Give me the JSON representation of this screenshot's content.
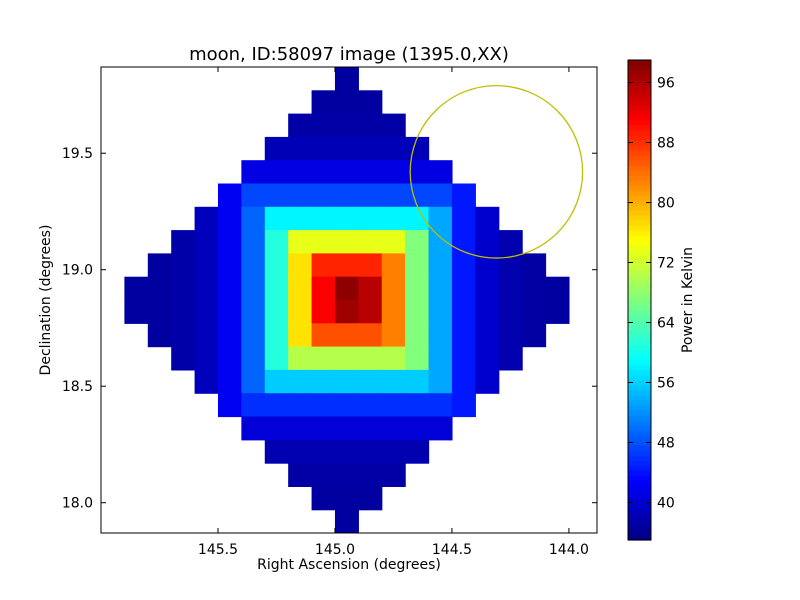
{
  "chart_data": {
    "type": "heatmap",
    "title": "moon, ID:58097 image (1395.0,XX)",
    "xlabel": "Right Ascension (degrees)",
    "ylabel": "Declination (degrees)",
    "xlim": [
      146.0,
      143.88
    ],
    "ylim": [
      17.87,
      19.87
    ],
    "x_ticks": [
      {
        "value": 145.5,
        "label": "145.5"
      },
      {
        "value": 145.0,
        "label": "145.0"
      },
      {
        "value": 144.5,
        "label": "144.5"
      },
      {
        "value": 144.0,
        "label": "144.0"
      }
    ],
    "y_ticks": [
      {
        "value": 18.0,
        "label": "18.0"
      },
      {
        "value": 18.5,
        "label": "18.5"
      },
      {
        "value": 19.0,
        "label": "19.0"
      },
      {
        "value": 19.5,
        "label": "19.5"
      }
    ],
    "colorbar": {
      "label": "Power in Kelvin",
      "range": [
        35,
        99
      ],
      "ticks": [
        {
          "value": 40,
          "label": "40"
        },
        {
          "value": 48,
          "label": "48"
        },
        {
          "value": 56,
          "label": "56"
        },
        {
          "value": 64,
          "label": "64"
        },
        {
          "value": 72,
          "label": "72"
        },
        {
          "value": 80,
          "label": "80"
        },
        {
          "value": 88,
          "label": "88"
        },
        {
          "value": 96,
          "label": "96"
        }
      ],
      "colormap": "jet"
    },
    "image": {
      "peak_center": {
        "ra": 144.93,
        "dec": 18.88
      },
      "peak_value": 99,
      "background_value": 37,
      "coverage_diamond": {
        "center": {
          "ra": 144.94,
          "dec": 18.88
        },
        "half_width_ra": 1.03,
        "half_height_dec": 1.0
      },
      "grid_ra": [
        145.95,
        145.85,
        145.75,
        145.65,
        145.55,
        145.45,
        145.35,
        145.25,
        145.15,
        145.05,
        144.95,
        144.85,
        144.75,
        144.65,
        144.55,
        144.45,
        144.35,
        144.25,
        144.15,
        144.05,
        143.95
      ],
      "grid_dec": [
        19.82,
        19.72,
        19.62,
        19.52,
        19.42,
        19.32,
        19.22,
        19.12,
        19.02,
        18.92,
        18.82,
        18.72,
        18.62,
        18.52,
        18.42,
        18.32,
        18.22,
        18.12,
        18.02,
        17.92
      ]
    },
    "overlay_circle": {
      "center_ra": 144.31,
      "center_dec": 19.42,
      "radius_dec": 0.37,
      "color": "#bfbf00"
    }
  }
}
